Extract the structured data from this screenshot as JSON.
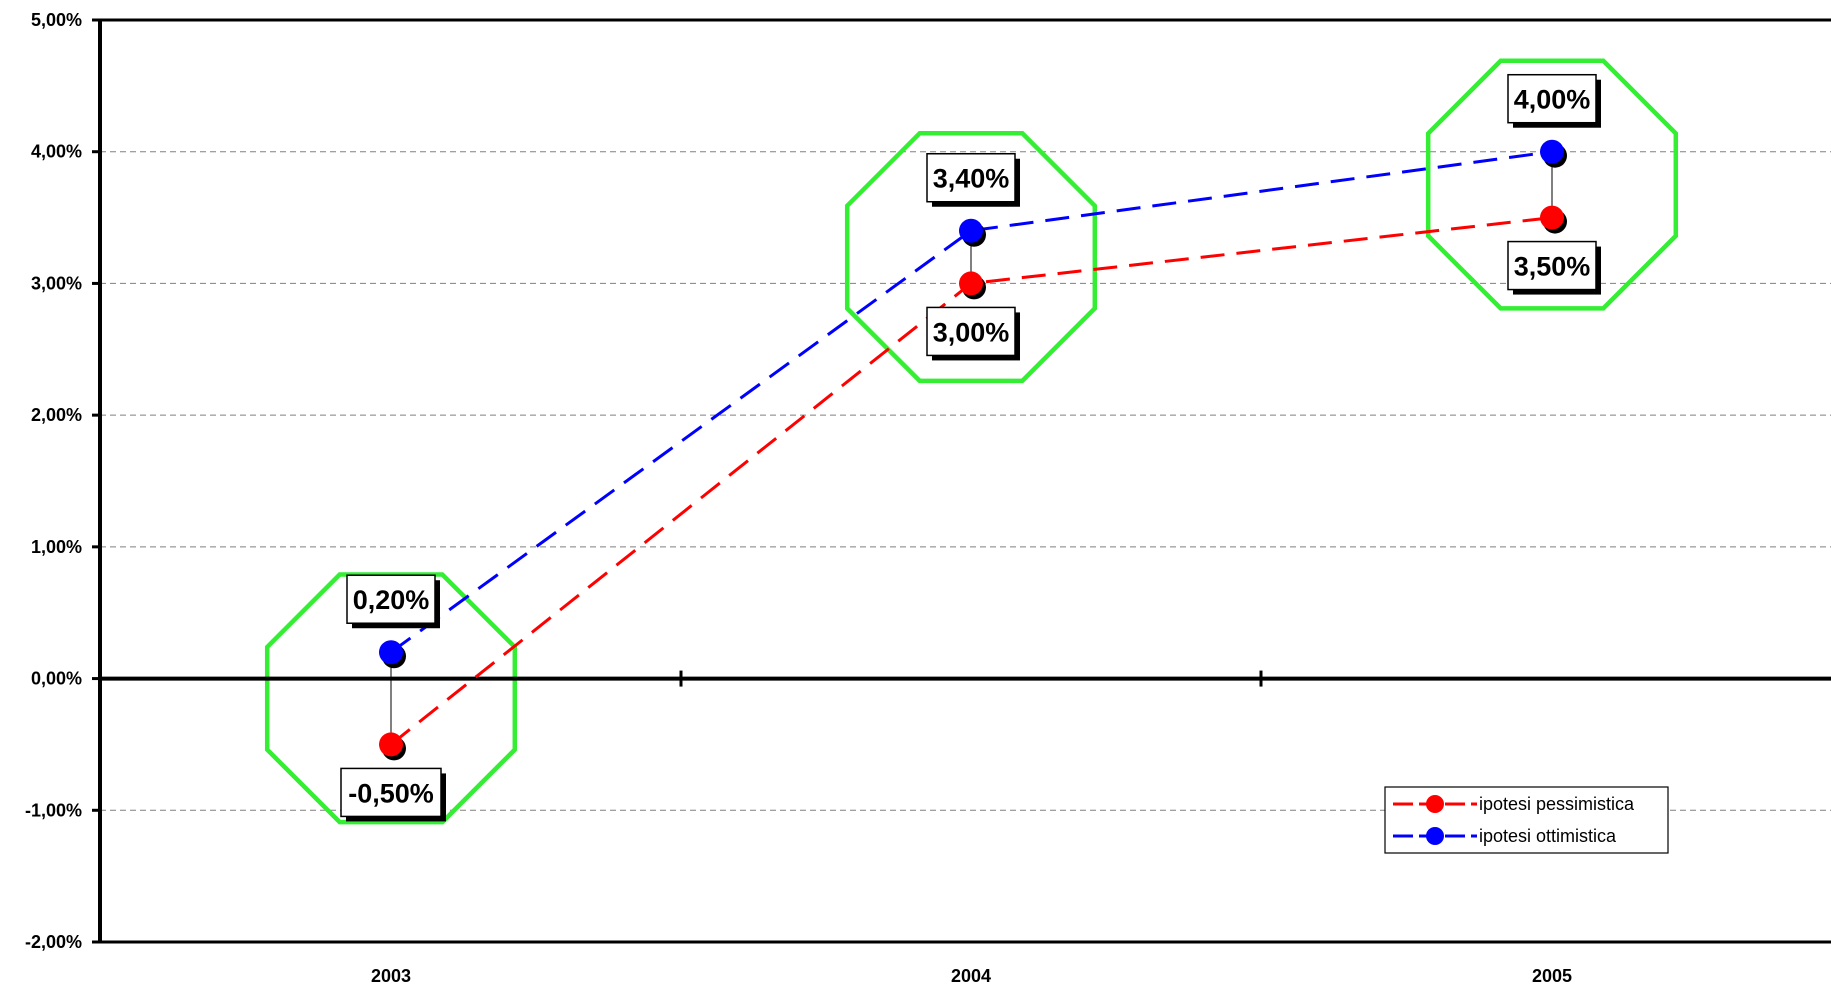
{
  "chart_data": {
    "type": "line",
    "categories": [
      "2003",
      "2004",
      "2005"
    ],
    "series": [
      {
        "name": "ipotesi pessimistica",
        "color": "#ff0000",
        "values": [
          -0.5,
          3.0,
          3.5
        ],
        "labels": [
          "-0,50%",
          "3,00%",
          "3,50%"
        ]
      },
      {
        "name": "ipotesi ottimistica",
        "color": "#0000ff",
        "values": [
          0.2,
          3.4,
          4.0
        ],
        "labels": [
          "0,20%",
          "3,40%",
          "4,00%"
        ]
      }
    ],
    "ylim": [
      -2,
      5
    ],
    "yticks": [
      5,
      4,
      3,
      2,
      1,
      0,
      -1,
      -2
    ],
    "ytick_labels": [
      "5,00%",
      "4,00%",
      "3,00%",
      "2,00%",
      "1,00%",
      "0,00%",
      "-1,00%",
      "-2,00%"
    ],
    "grid": true,
    "legend_position": "bottom-right",
    "highlight_color": "#33ee33",
    "title": "",
    "xlabel": "",
    "ylabel": ""
  }
}
